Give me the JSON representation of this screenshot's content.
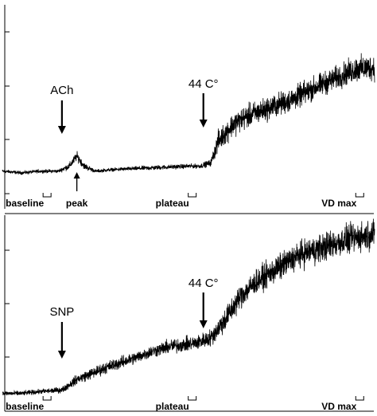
{
  "chart_data": [
    {
      "type": "line",
      "title": "",
      "xlabel": "",
      "ylabel": "",
      "grid": false,
      "series": [
        {
          "x": [
            0,
            5,
            10,
            15,
            18,
            20,
            22,
            25,
            30,
            40,
            50,
            53,
            56,
            58,
            62,
            66,
            72,
            78,
            84,
            90,
            95,
            100
          ],
          "values": [
            0.12,
            0.11,
            0.12,
            0.12,
            0.15,
            0.21,
            0.15,
            0.12,
            0.13,
            0.14,
            0.15,
            0.15,
            0.17,
            0.3,
            0.4,
            0.45,
            0.5,
            0.55,
            0.62,
            0.68,
            0.73,
            0.74
          ],
          "noise": [
            0.015,
            0.015,
            0.015,
            0.015,
            0.03,
            0.04,
            0.03,
            0.015,
            0.015,
            0.02,
            0.02,
            0.02,
            0.03,
            0.09,
            0.1,
            0.1,
            0.1,
            0.1,
            0.1,
            0.1,
            0.11,
            0.11
          ]
        }
      ],
      "annotations": [
        {
          "text": "ACh",
          "x": 16
        },
        {
          "text": "44 C°",
          "x": 54
        }
      ],
      "peak_marker": {
        "text": "peak",
        "x": 20
      },
      "markers": [
        {
          "text": "baseline",
          "x": 12
        },
        {
          "text": "plateau",
          "x": 51
        },
        {
          "text": "VD max",
          "x": 96
        }
      ]
    },
    {
      "type": "line",
      "title": "",
      "xlabel": "",
      "ylabel": "",
      "grid": false,
      "series": [
        {
          "x": [
            0,
            5,
            10,
            16,
            20,
            28,
            35,
            40,
            45,
            52,
            56,
            60,
            64,
            68,
            74,
            80,
            86,
            92,
            100
          ],
          "values": [
            0.02,
            0.02,
            0.03,
            0.04,
            0.1,
            0.17,
            0.22,
            0.26,
            0.29,
            0.31,
            0.34,
            0.45,
            0.58,
            0.66,
            0.74,
            0.82,
            0.86,
            0.9,
            0.94
          ],
          "noise": [
            0.02,
            0.02,
            0.02,
            0.025,
            0.04,
            0.05,
            0.05,
            0.05,
            0.06,
            0.06,
            0.07,
            0.1,
            0.1,
            0.1,
            0.11,
            0.11,
            0.12,
            0.12,
            0.12
          ]
        }
      ],
      "annotations": [
        {
          "text": "SNP",
          "x": 16
        },
        {
          "text": "44 C°",
          "x": 54
        }
      ],
      "markers": [
        {
          "text": "baseline",
          "x": 12
        },
        {
          "text": "plateau",
          "x": 51
        },
        {
          "text": "VD max",
          "x": 96
        }
      ]
    }
  ]
}
